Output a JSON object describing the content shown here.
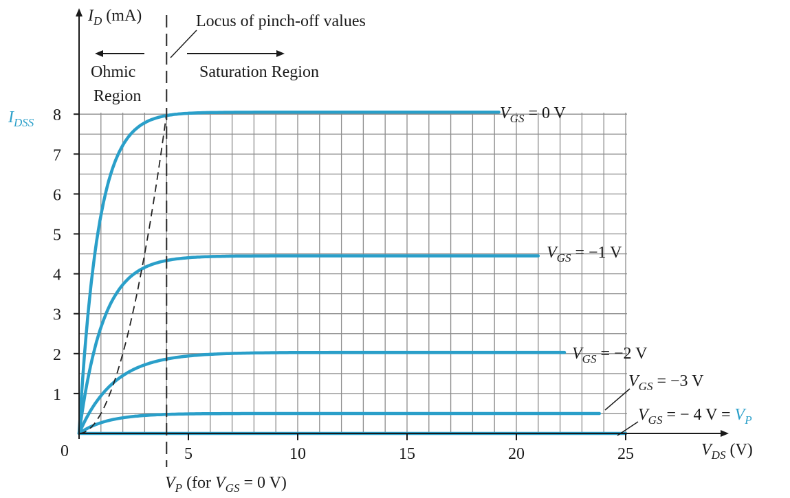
{
  "chart_data": {
    "type": "line",
    "title": "",
    "xlabel": {
      "main": "V",
      "sub": "DS",
      "unit": " (V)"
    },
    "ylabel": {
      "main": "I",
      "sub": "D",
      "unit": " (mA)"
    },
    "xlim": [
      0,
      25
    ],
    "ylim": [
      0,
      8
    ],
    "x_ticks": [
      5,
      10,
      15,
      20,
      25
    ],
    "y_ticks": [
      1,
      2,
      3,
      4,
      5,
      6,
      7,
      8
    ],
    "origin_label": "0",
    "grid": true,
    "idss_label": {
      "main": "I",
      "sub": "DSS"
    },
    "series": [
      {
        "name": "VGS = 0 V",
        "label": {
          "main": "V",
          "sub": "GS",
          "rest": " = 0 V"
        },
        "isat": 8.05,
        "k": 0.88,
        "xend": 19.2
      },
      {
        "name": "VGS = −1 V",
        "label": {
          "main": "V",
          "sub": "GS",
          "rest": " = −1 V"
        },
        "isat": 4.45,
        "k": 1.1,
        "xend": 21.0
      },
      {
        "name": "VGS = −2 V",
        "label": {
          "main": "V",
          "sub": "GS",
          "rest": " = −2 V"
        },
        "isat": 2.03,
        "k": 1.6,
        "xend": 22.2
      },
      {
        "name": "VGS = −3 V",
        "label": {
          "main": "V",
          "sub": "GS",
          "rest": " = −3 V"
        },
        "isat": 0.5,
        "k": 1.3,
        "xend": 23.8
      },
      {
        "name": "VGS = − 4 V = VP",
        "label": {
          "main": "V",
          "sub": "GS",
          "rest": " = − 4 V = ",
          "accent": "V",
          "accent_sub": "P"
        },
        "isat": 0.0,
        "k": 1.0,
        "xend": 25.0
      }
    ],
    "pinch_off_locus": [
      [
        0,
        0
      ],
      [
        1,
        0.5
      ],
      [
        2,
        2.0
      ],
      [
        3,
        4.5
      ],
      [
        4,
        8.0
      ]
    ],
    "vp_line_x": 4,
    "annotations": {
      "locus": "Locus of pinch-off values",
      "ohmic_line1": "Ohmic",
      "ohmic_line2": "Region",
      "saturation": "Saturation Region",
      "vp": {
        "main": "V",
        "sub": "P",
        "mid": " (for ",
        "main2": "V",
        "sub2": "GS",
        "rest": " = 0 V)"
      }
    },
    "colors": {
      "curve": "#2a9fc9",
      "accent_text": "#2a9fc9",
      "grid": "#8c8c8c",
      "axis": "#1a1a1a"
    }
  }
}
